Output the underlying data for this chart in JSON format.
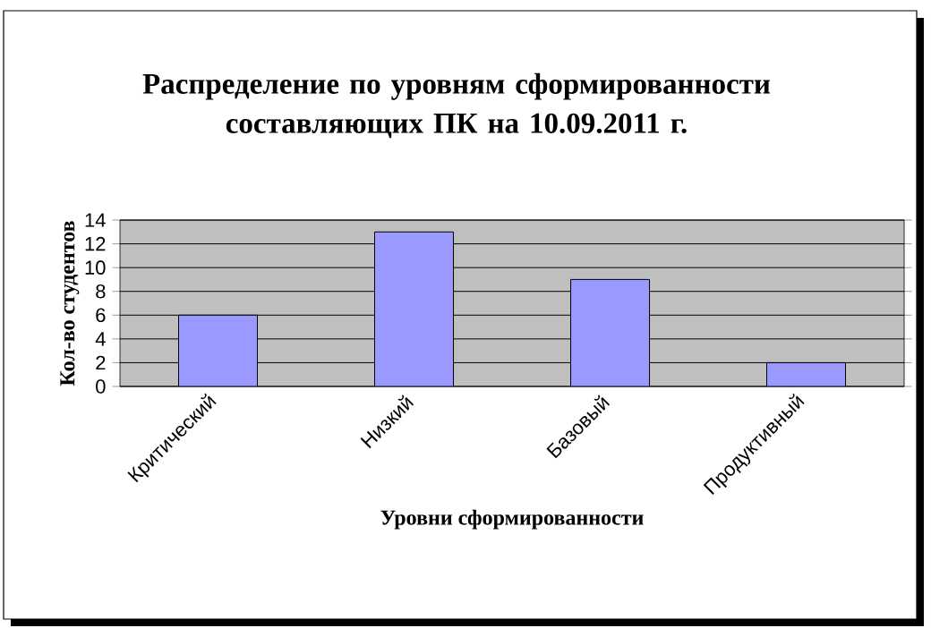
{
  "chart_data": {
    "type": "bar",
    "title": "Распределение по уровням сформированности составляющих ПК на 10.09.2011 г.",
    "xlabel": "Уровни сформированности",
    "ylabel": "Кол-во студентов",
    "categories": [
      "Критический",
      "Низкий",
      "Базовый",
      "Продуктивный"
    ],
    "values": [
      6,
      13,
      9,
      2
    ],
    "color": "#9999ff",
    "ylim": [
      0,
      14
    ],
    "yticks": [
      0,
      2,
      4,
      6,
      8,
      10,
      12,
      14
    ],
    "grid": "y"
  }
}
